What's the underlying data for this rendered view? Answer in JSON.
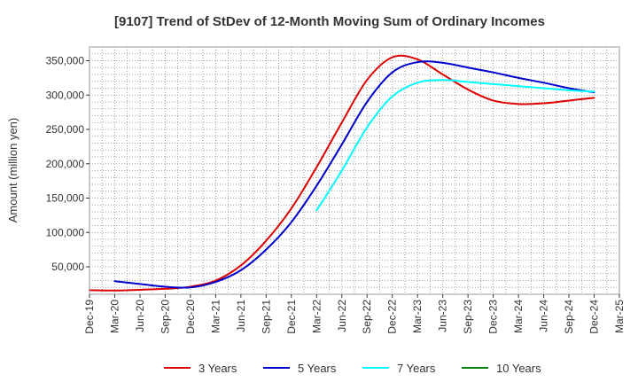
{
  "chart_data": {
    "type": "line",
    "title": "[9107]  Trend of StDev of 12-Month Moving Sum of Ordinary Incomes",
    "xlabel": "",
    "ylabel": "Amount (million yen)",
    "ylim": [
      10000,
      370000
    ],
    "yticks": [
      50000,
      100000,
      150000,
      200000,
      250000,
      300000,
      350000
    ],
    "ytick_labels": [
      "50,000",
      "100,000",
      "150,000",
      "200,000",
      "250,000",
      "300,000",
      "350,000"
    ],
    "categories": [
      "Dec-19",
      "Mar-20",
      "Jun-20",
      "Sep-20",
      "Dec-20",
      "Mar-21",
      "Jun-21",
      "Sep-21",
      "Dec-21",
      "Mar-22",
      "Jun-22",
      "Sep-22",
      "Dec-22",
      "Mar-23",
      "Jun-23",
      "Sep-23",
      "Dec-23",
      "Mar-24",
      "Jun-24",
      "Sep-24",
      "Dec-24",
      "Mar-25"
    ],
    "grid": true,
    "legend_position": "bottom",
    "series": [
      {
        "name": "3 Years",
        "color": "#dd0000",
        "values": [
          16000,
          15500,
          16500,
          18000,
          21000,
          30000,
          52000,
          88000,
          135000,
          195000,
          260000,
          322000,
          355000,
          352000,
          330000,
          308000,
          292000,
          287000,
          288000,
          292000,
          296000,
          null
        ]
      },
      {
        "name": "5 Years",
        "color": "#0000cc",
        "values": [
          null,
          29000,
          25000,
          21000,
          20000,
          28000,
          45000,
          75000,
          115000,
          168000,
          228000,
          290000,
          333000,
          348000,
          347000,
          340000,
          333000,
          325000,
          318000,
          310000,
          304000,
          null
        ]
      },
      {
        "name": "7 Years",
        "color": "#00ffff",
        "values": [
          null,
          null,
          null,
          null,
          null,
          null,
          null,
          null,
          null,
          132000,
          190000,
          253000,
          298000,
          318000,
          322000,
          319000,
          316000,
          313000,
          310000,
          307000,
          305000,
          null
        ]
      },
      {
        "name": "10 Years",
        "color": "#008000",
        "values": [
          null,
          null,
          null,
          null,
          null,
          null,
          null,
          null,
          null,
          null,
          null,
          null,
          null,
          null,
          null,
          null,
          null,
          null,
          null,
          null,
          null,
          null
        ]
      }
    ]
  }
}
